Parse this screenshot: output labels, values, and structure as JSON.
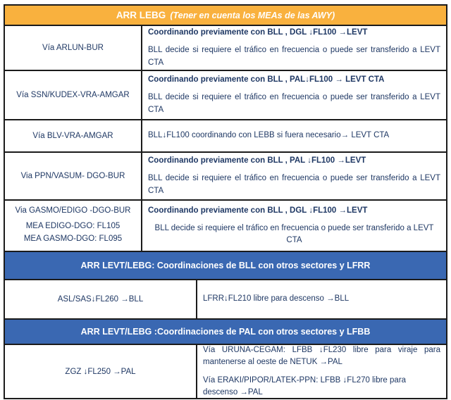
{
  "header": {
    "title": "ARR LEBG",
    "subtitle": "(Tener en cuenta los MEAs de las AWY)"
  },
  "rows": [
    {
      "via": [
        "Vía ARLUN-BUR"
      ],
      "bold": "Coordinando previamente con BLL , DGL ↓FL100 →LEVT",
      "body": "BLL decide si requiere el tráfico en frecuencia o puede ser transferido a LEVT CTA"
    },
    {
      "via": [
        "Vía SSN/KUDEX-VRA-AMGAR"
      ],
      "bold": "Coordinando previamente con BLL , PAL↓FL100 → LEVT CTA",
      "body": "BLL decide si requiere el tráfico en frecuencia o puede ser transferido a LEVT CTA"
    },
    {
      "via": [
        "Vía BLV-VRA-AMGAR"
      ],
      "text": "BLL↓FL100 coordinando con LEBB si fuera necesario→ LEVT CTA"
    },
    {
      "via": [
        "Via PPN/VASUM- DGO-BUR"
      ],
      "bold": "Coordinando previamente con BLL , PAL ↓FL100 →LEVT",
      "body": "BLL decide si requiere el tráfico en frecuencia o puede ser transferido a LEVT CTA"
    },
    {
      "via": [
        "Via GASMO/EDIGO -DGO-BUR",
        "MEA EDIGO-DGO: FL105",
        "MEA GASMO-DGO: FL095"
      ],
      "bold": "Coordinando previamente con BLL , DGL ↓FL100 →LEVT",
      "body": "BLL decide si requiere el tráfico en frecuencia o puede ser transferido a LEVT CTA"
    }
  ],
  "section_bll": {
    "header": "ARR LEVT/LEBG: Coordinaciones de BLL con otros sectores y LFRR",
    "row": {
      "left": "ASL/SAS↓FL260 →BLL",
      "right": "LFRR↓FL210 libre para descenso →BLL"
    }
  },
  "section_pal": {
    "header": "ARR LEVT/LEBG :Coordinaciones de PAL con otros sectores y LFBB",
    "row": {
      "left": "ZGZ ↓FL250 →PAL",
      "right": [
        "Vía URUNA-CEGAM: LFBB ↓FL230 libre para viraje para mantenerse al oeste de NETUK →PAL",
        "Vía ERAKI/PIPOR/LATEK-PPN: LFBB ↓FL270 libre para descenso →PAL"
      ]
    }
  },
  "colors": {
    "orange_bg": "#F9B13E",
    "blue_bg": "#3A68B2",
    "text_navy": "#1F3864",
    "border_dark": "#1b1b1b"
  }
}
